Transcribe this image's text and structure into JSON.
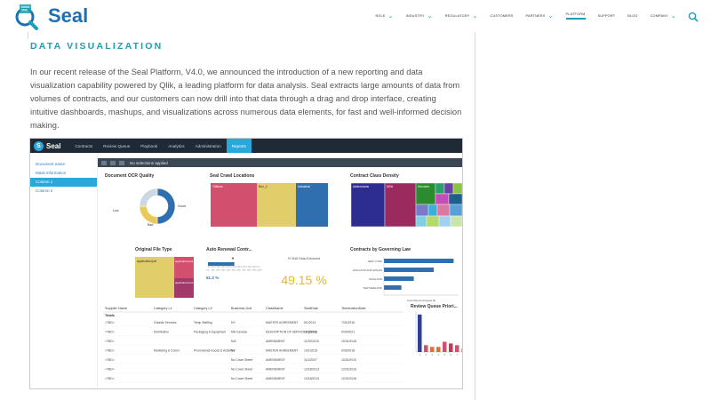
{
  "header": {
    "logo_text": "Seal",
    "nav": [
      {
        "label": "ROLE",
        "dropdown": true,
        "active": false
      },
      {
        "label": "INDUSTRY",
        "dropdown": true,
        "active": false
      },
      {
        "label": "REGULATORY",
        "dropdown": true,
        "active": false
      },
      {
        "label": "CUSTOMERS",
        "dropdown": false,
        "active": false
      },
      {
        "label": "PARTNERS",
        "dropdown": true,
        "active": false
      },
      {
        "label": "PLATFORM",
        "dropdown": false,
        "active": true
      },
      {
        "label": "SUPPORT",
        "dropdown": false,
        "active": false
      },
      {
        "label": "BLOG",
        "dropdown": false,
        "active": false
      },
      {
        "label": "COMPANY",
        "dropdown": true,
        "active": false
      }
    ]
  },
  "section": {
    "title": "DATA VISUALIZATION",
    "paragraph": "In our recent release of the Seal Platform, V4.0, we announced the introduction of a new reporting and data visualization capability powered by Qlik, a leading platform for data analysis. Seal extracts large amounts of data from volumes of contracts, and our customers can now drill into that data through a drag and drop interface, creating intuitive dashboards, mashups, and visualizations across numerous data elements, for fast and well-informed decision making."
  },
  "app": {
    "logo_text": "Seal",
    "tabs": [
      {
        "label": "Contracts",
        "active": false
      },
      {
        "label": "Review Queue",
        "active": false
      },
      {
        "label": "Playbook",
        "active": false
      },
      {
        "label": "Analytics",
        "active": false
      },
      {
        "label": "Administration",
        "active": false
      },
      {
        "label": "Reports",
        "active": true
      }
    ],
    "sidebar": [
      {
        "label": "Document name",
        "active": false
      },
      {
        "label": "Mask information",
        "active": false
      },
      {
        "label": "Column 1",
        "active": true
      },
      {
        "label": "Column 2",
        "active": false
      }
    ],
    "filter_text": "No selections applied",
    "panels": {
      "ocr": {
        "title": "Document OCR Quality",
        "legend": [
          "Good",
          "Low",
          "Bad"
        ]
      },
      "crawl": {
        "title": "Seal Crawl Locations",
        "labels": [
          "Trillions",
          "Box_2",
          "Industrial"
        ]
      },
      "clause": {
        "title": "Contract Class Density",
        "labels": [
          "Addendums",
          "NDA",
          "Services"
        ]
      },
      "filetype": {
        "title": "Original File Type",
        "labels": [
          "application/pdf",
          "application/vnd.msword",
          "application/vnd.openxml"
        ]
      },
      "renewal": {
        "title": "Auto Renewal Contr...",
        "value_label": "% Shift Data-Extracted",
        "big_value": "49.15 %",
        "small_value": "51.2 %",
        "ticks": [
          "0%",
          "10%",
          "20%",
          "30%",
          "40%",
          "50%",
          "60%",
          "70%",
          "80%",
          "90%",
          "100%"
        ]
      },
      "law": {
        "title": "Contracts by Governing Law",
        "categories": [
          "NEW YORK",
          "ENGLAND AND WALES",
          "ENGLAND",
          "SWITZERLAND"
        ],
        "xlabel": "Count(GoverningLaw.id)"
      },
      "queue": {
        "title": "Review Queue Priori..."
      }
    },
    "table": {
      "headers": [
        "Supplier Name",
        "Category L1",
        "Category L2",
        "Business Unit",
        "ClassName",
        "StartDate",
        "TerminationDate"
      ],
      "totals_label": "Totals",
      "rows": [
        [
          "<TBD>",
          "Outside Services",
          "Temp Staffing",
          "NY",
          "MASTER AGREEMENT",
          "8/1/2013",
          "7/31/2016"
        ],
        [
          "<TBD>",
          "Distribution",
          "Packaging & Equipment",
          "MA Canada",
          "DESCRIPTION OF SERVICES (DOS)",
          "16/1/2018",
          "9/30/2021"
        ],
        [
          "<TBD>",
          "",
          "",
          "N/A",
          "AMENDMENT",
          "11/20/2015",
          "10/31/2018"
        ],
        [
          "<TBD>",
          "Marketing & Comm.",
          "Promotional Goods & Activities",
          "NY",
          "MASTER AGREEMENT",
          "10/1/2015",
          "9/30/2018"
        ],
        [
          "<TBD>",
          "",
          "",
          "No Cover Sheet",
          "AMENDMENT",
          "11/1/2007",
          "10/31/2010"
        ],
        [
          "<TBD>",
          "",
          "",
          "No Cover Sheet",
          "AMENDMENT",
          "12/18/2013",
          "12/31/2016"
        ],
        [
          "<TBD>",
          "",
          "",
          "No Cover Sheet",
          "AMENDMENT",
          "12/18/2013",
          "12/31/2016"
        ]
      ]
    }
  },
  "chart_data": [
    {
      "type": "pie",
      "title": "Document OCR Quality",
      "categories": [
        "Good",
        "Low",
        "Bad"
      ],
      "values": [
        50,
        25,
        25
      ],
      "colors": [
        "#2f6faf",
        "#e8c95a",
        "#ccd7e4"
      ]
    },
    {
      "type": "bar",
      "title": "Contracts by Governing Law",
      "categories": [
        "NEW YORK",
        "ENGLAND AND WALES",
        "ENGLAND",
        "SWITZERLAND"
      ],
      "values": [
        28,
        20,
        12,
        7
      ]
    },
    {
      "type": "bar",
      "title": "Review Queue Priori...",
      "categories": [
        "1",
        "2",
        "3",
        "4",
        "5",
        "6",
        "7",
        "8"
      ],
      "values": [
        11,
        2,
        1.5,
        1.5,
        3,
        2.5,
        2,
        1
      ]
    }
  ]
}
